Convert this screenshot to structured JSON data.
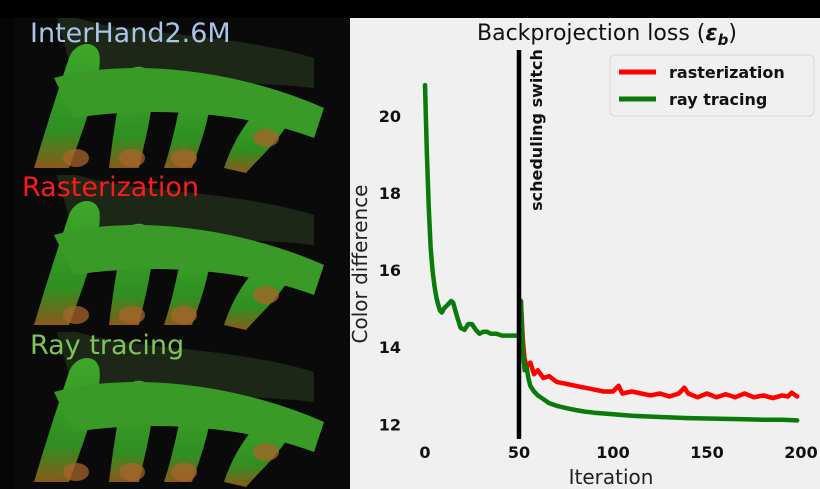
{
  "panels": [
    {
      "label": "InterHand2.6M",
      "color": "#a9c4e6"
    },
    {
      "label": "Rasterization",
      "color": "#ff1a1a"
    },
    {
      "label": "Ray tracing",
      "color": "#7fc45a"
    }
  ],
  "chart_data": {
    "type": "line",
    "title_prefix": "Backprojection loss (",
    "title_symbol": "ε",
    "title_sub": "b",
    "title_suffix": ")",
    "xlabel": "Iteration",
    "ylabel": "Color difference",
    "xlim": [
      0,
      200
    ],
    "ylim": [
      11.8,
      21.4
    ],
    "xticks": [
      0,
      50,
      100,
      150,
      200
    ],
    "yticks": [
      12,
      14,
      16,
      18,
      20
    ],
    "grid": false,
    "legend_position": "top-right",
    "annotation": {
      "x": 50,
      "label": "scheduling switch"
    },
    "series": [
      {
        "name": "rasterization",
        "color": "#ff0000",
        "x": [
          50,
          51,
          52,
          53,
          54,
          56,
          58,
          60,
          63,
          66,
          70,
          75,
          80,
          85,
          90,
          95,
          100,
          103,
          105,
          110,
          115,
          120,
          125,
          130,
          135,
          138,
          140,
          145,
          150,
          155,
          160,
          165,
          170,
          175,
          180,
          185,
          190,
          193,
          195,
          198
        ],
        "y": [
          14.4,
          15.2,
          14.2,
          13.7,
          13.5,
          13.6,
          13.3,
          13.4,
          13.2,
          13.25,
          13.1,
          13.05,
          13.0,
          12.95,
          12.9,
          12.85,
          12.85,
          13.0,
          12.8,
          12.85,
          12.8,
          12.75,
          12.8,
          12.72,
          12.8,
          12.95,
          12.8,
          12.7,
          12.8,
          12.7,
          12.78,
          12.7,
          12.8,
          12.7,
          12.75,
          12.68,
          12.75,
          12.72,
          12.82,
          12.72
        ]
      },
      {
        "name": "ray tracing",
        "color": "#0a7a0a",
        "x": [
          0,
          1,
          2,
          3,
          4,
          5,
          6,
          7,
          8,
          9,
          10,
          12,
          14,
          15,
          17,
          19,
          21,
          23,
          25,
          27,
          29,
          31,
          33,
          35,
          38,
          41,
          44,
          47,
          50,
          51,
          52,
          53,
          54,
          55,
          56,
          58,
          60,
          63,
          66,
          70,
          75,
          80,
          85,
          90,
          95,
          100,
          110,
          120,
          130,
          140,
          150,
          160,
          170,
          180,
          190,
          198
        ],
        "y": [
          20.8,
          19.0,
          17.6,
          16.6,
          16.0,
          15.6,
          15.3,
          15.1,
          14.95,
          14.9,
          15.0,
          15.1,
          15.2,
          15.15,
          14.8,
          14.5,
          14.45,
          14.6,
          14.6,
          14.45,
          14.35,
          14.4,
          14.4,
          14.35,
          14.35,
          14.3,
          14.3,
          14.3,
          14.3,
          15.2,
          13.9,
          13.4,
          13.5,
          13.2,
          13.0,
          12.85,
          12.75,
          12.65,
          12.55,
          12.48,
          12.42,
          12.37,
          12.33,
          12.3,
          12.28,
          12.26,
          12.22,
          12.2,
          12.18,
          12.16,
          12.15,
          12.14,
          12.13,
          12.12,
          12.12,
          12.1
        ]
      }
    ]
  }
}
